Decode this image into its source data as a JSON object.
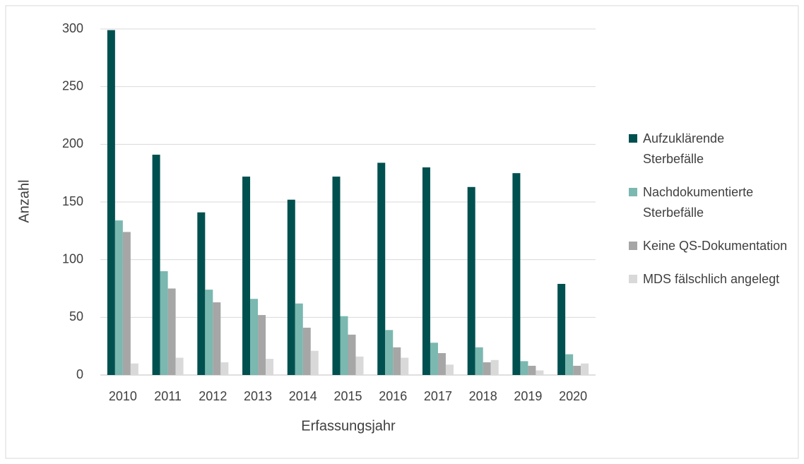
{
  "chart_data": {
    "type": "bar",
    "x_label": "Erfassungsjahr",
    "y_label": "Anzahl",
    "categories": [
      "2010",
      "2011",
      "2012",
      "2013",
      "2014",
      "2015",
      "2016",
      "2017",
      "2018",
      "2019",
      "2020"
    ],
    "series": [
      {
        "name": "Aufzuklärende Sterbefälle",
        "color": "#005050",
        "values": [
          299,
          191,
          141,
          172,
          152,
          172,
          184,
          180,
          163,
          175,
          79
        ]
      },
      {
        "name": "Nachdokumentierte Sterbefälle",
        "color": "#7ab8b0",
        "values": [
          134,
          90,
          74,
          66,
          62,
          51,
          39,
          28,
          24,
          12,
          18
        ]
      },
      {
        "name": "Keine QS-Dokumentation",
        "color": "#a6a6a6",
        "values": [
          124,
          75,
          63,
          52,
          41,
          35,
          24,
          19,
          11,
          8,
          8
        ]
      },
      {
        "name": "MDS fälschlich angelegt",
        "color": "#d9d9d9",
        "values": [
          10,
          15,
          11,
          14,
          21,
          16,
          15,
          9,
          13,
          4,
          10
        ]
      }
    ],
    "ylim": [
      0,
      300
    ],
    "yticks": [
      0,
      50,
      100,
      150,
      200,
      250,
      300
    ],
    "grid": true,
    "legend": "right"
  }
}
